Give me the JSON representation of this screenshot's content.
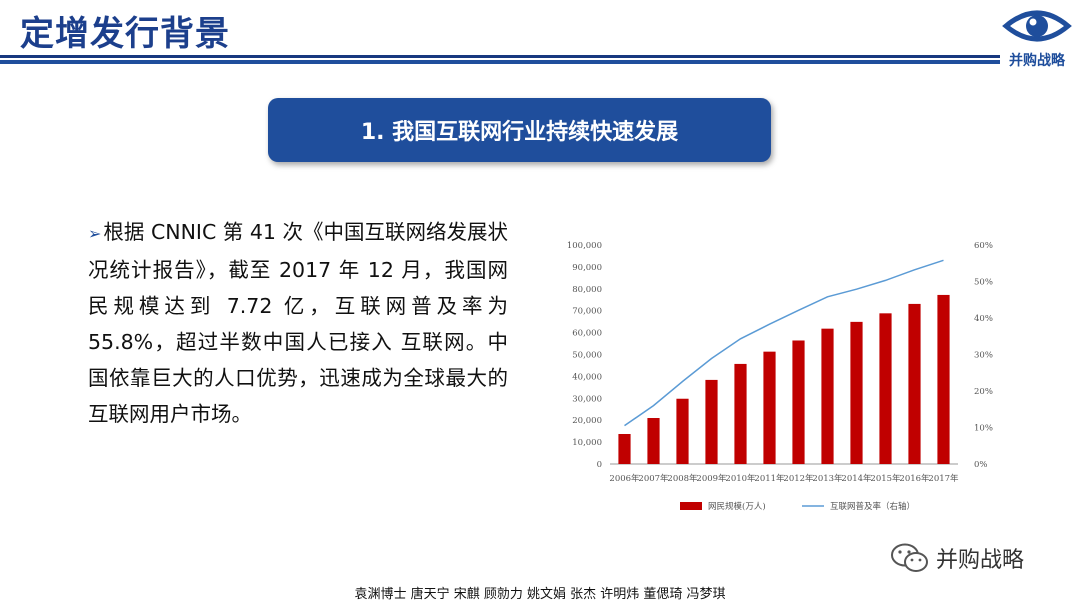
{
  "header": {
    "title": "定增发行背景",
    "logo_text": "并购战略",
    "logo_icon": "eye-icon"
  },
  "banner": {
    "text": "1. 我国互联网行业持续快速发展"
  },
  "body": {
    "bullet_marker": "➢",
    "bullet_text": "根据 CNNIC 第 41 次《中国互联网络发展状况统计报告》，截至 2017 年 12 月，我国网民规模达到 7.72 亿，互联网普及率为55.8%，超过半数中国人已接入 互联网。中国依靠巨大的人口优势，迅速成为全球最大的互联网用户市场。"
  },
  "chart_data": {
    "type": "bar",
    "categories": [
      "2006年",
      "2007年",
      "2008年",
      "2009年",
      "2010年",
      "2011年",
      "2012年",
      "2013年",
      "2014年",
      "2015年",
      "2016年",
      "2017年"
    ],
    "series": [
      {
        "name": "网民规模(万人)",
        "type": "bar",
        "axis": "left",
        "values": [
          13700,
          21000,
          29800,
          38400,
          45700,
          51300,
          56400,
          61800,
          64900,
          68800,
          73100,
          77200
        ]
      },
      {
        "name": "互联网普及率（右轴）",
        "type": "line",
        "axis": "right",
        "values": [
          10.5,
          16.0,
          22.6,
          28.9,
          34.3,
          38.3,
          42.1,
          45.8,
          47.9,
          50.3,
          53.2,
          55.8
        ]
      }
    ],
    "ylim_left": [
      0,
      100000
    ],
    "yticks_left": [
      "0",
      "10,000",
      "20,000",
      "30,000",
      "40,000",
      "50,000",
      "60,000",
      "70,000",
      "80,000",
      "90,000",
      "100,000"
    ],
    "ylim_right": [
      0,
      60
    ],
    "yticks_right": [
      "0%",
      "10%",
      "20%",
      "30%",
      "40%",
      "50%",
      "60%"
    ],
    "legend_position": "bottom",
    "grid": false,
    "colors": {
      "bar": "#c00000",
      "line": "#5b9bd5"
    }
  },
  "watermark": {
    "text": "并购战略",
    "icon": "wechat-icon"
  },
  "footer": {
    "authors": "袁渊博士 唐天宁 宋麒 顾勍力 姚文娟 张杰 许明炜 董偲琦 冯梦琪"
  }
}
